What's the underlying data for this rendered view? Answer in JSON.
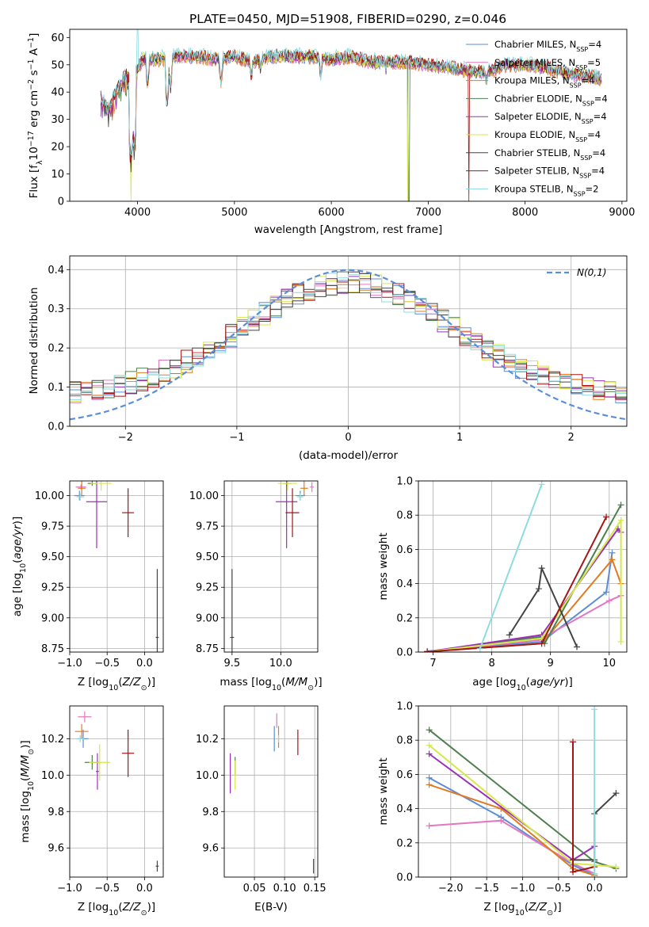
{
  "title": "PLATE=0450, MJD=51908, FIBERID=0290, z=0.046",
  "colors": {
    "Chabrier MILES": "#5b8ed6",
    "Salpeter MILES": "#e377c2",
    "Kroupa MILES": "#e07b24",
    "Chabrier ELODIE": "#4f7f4f",
    "Salpeter ELODIE": "#9b30b8",
    "Kroupa ELODIE": "#d6e84a",
    "Chabrier STELIB": "#444444",
    "Salpeter STELIB": "#a51515",
    "Kroupa STELIB": "#8fdbe0"
  },
  "chart_data": [
    {
      "id": "spectrum",
      "type": "line",
      "xlabel": "wavelength [Angstrom, rest frame]",
      "ylabel": "Flux [f_λ 10^-17 erg cm^-2 s^-1 A^-1]",
      "xlim": [
        3300,
        9050
      ],
      "ylim": [
        0,
        63
      ],
      "xticks": [
        4000,
        5000,
        6000,
        7000,
        8000,
        9000
      ],
      "yticks": [
        0,
        10,
        20,
        30,
        40,
        50,
        60
      ],
      "grid": false,
      "legend_position": "top-right",
      "legend": [
        {
          "name": "Chabrier MILES",
          "label": "Chabrier MILES, N",
          "nssp": "=4"
        },
        {
          "name": "Salpeter MILES",
          "label": "Salpeter MILES, N",
          "nssp": "=5"
        },
        {
          "name": "Kroupa MILES",
          "label": "Kroupa MILES, N",
          "nssp": "=4"
        },
        {
          "name": "Chabrier ELODIE",
          "label": "Chabrier ELODIE, N",
          "nssp": "=4"
        },
        {
          "name": "Salpeter ELODIE",
          "label": "Salpeter ELODIE, N",
          "nssp": "=4"
        },
        {
          "name": "Kroupa ELODIE",
          "label": "Kroupa ELODIE, N",
          "nssp": "=4"
        },
        {
          "name": "Chabrier STELIB",
          "label": "Chabrier STELIB, N",
          "nssp": "=4"
        },
        {
          "name": "Salpeter STELIB",
          "label": "Salpeter STELIB, N",
          "nssp": "=4"
        },
        {
          "name": "Kroupa STELIB",
          "label": "Kroupa STELIB, N",
          "nssp": "=2"
        }
      ],
      "continuum": [
        [
          3620,
          38
        ],
        [
          3700,
          34
        ],
        [
          3800,
          42
        ],
        [
          3880,
          46
        ],
        [
          3960,
          45
        ],
        [
          4050,
          52
        ],
        [
          4200,
          52
        ],
        [
          4400,
          53
        ],
        [
          4600,
          53
        ],
        [
          4800,
          52
        ],
        [
          5000,
          53
        ],
        [
          5200,
          51
        ],
        [
          5400,
          53
        ],
        [
          5600,
          53
        ],
        [
          5800,
          53
        ],
        [
          6000,
          52
        ],
        [
          6200,
          53
        ],
        [
          6400,
          51
        ],
        [
          6600,
          51
        ],
        [
          6800,
          51
        ],
        [
          7000,
          50
        ],
        [
          7200,
          49
        ],
        [
          7400,
          48
        ],
        [
          7600,
          47
        ],
        [
          7800,
          50
        ],
        [
          8000,
          50
        ],
        [
          8200,
          49
        ],
        [
          8400,
          47
        ],
        [
          8600,
          46
        ],
        [
          8790,
          45
        ]
      ],
      "absorption_features": [
        [
          3933,
          15
        ],
        [
          3968,
          20
        ],
        [
          4102,
          42
        ],
        [
          4304,
          35
        ],
        [
          4340,
          41
        ],
        [
          4861,
          43
        ],
        [
          5175,
          45
        ],
        [
          5270,
          48
        ],
        [
          5890,
          45
        ],
        [
          6563,
          48
        ],
        [
          7600,
          43
        ]
      ],
      "dropouts": [
        {
          "series": "Kroupa ELODIE",
          "x": 3930
        },
        {
          "series": "Chabrier ELODIE",
          "x": 6800
        },
        {
          "series": "Kroupa ELODIE",
          "x": 6790
        },
        {
          "series": "Salpeter STELIB",
          "x": 7420
        }
      ]
    },
    {
      "id": "residual_hist",
      "type": "step",
      "xlabel": "(data-model)/error",
      "ylabel": "Normed distribution",
      "xlim": [
        -2.5,
        2.5
      ],
      "ylim": [
        0,
        0.435
      ],
      "xticks": [
        -2,
        -1,
        0,
        1,
        2
      ],
      "yticks": [
        0.0,
        0.1,
        0.2,
        0.3,
        0.4
      ],
      "grid": true,
      "legend_position": "top-right",
      "reference_curve": {
        "label": "N(0,1)",
        "mean": 0,
        "sigma": 1
      },
      "bins": {
        "start": -2.5,
        "width": 0.1,
        "count": 50
      }
    },
    {
      "id": "age_vs_Z",
      "type": "errorbar",
      "xlabel": "Z [log10(Z/Z_sun)]",
      "ylabel": "age  [log10(age/yr)]",
      "xlim": [
        -1.0,
        0.25
      ],
      "ylim": [
        8.72,
        10.12
      ],
      "xticks": [
        -1.0,
        -0.5,
        0.0
      ],
      "yticks": [
        8.75,
        9.0,
        9.25,
        9.5,
        9.75,
        10.0
      ],
      "grid": true,
      "points": [
        {
          "series": "Chabrier MILES",
          "x": -0.87,
          "y": 10.0,
          "xerr": 0.07,
          "yerr": 0.04
        },
        {
          "series": "Salpeter MILES",
          "x": -0.85,
          "y": 10.07,
          "xerr": 0.07,
          "yerr": 0.02
        },
        {
          "series": "Kroupa MILES",
          "x": -0.84,
          "y": 10.06,
          "xerr": 0.05,
          "yerr": 0.06
        },
        {
          "series": "Chabrier ELODIE",
          "x": -0.7,
          "y": 10.1,
          "xerr": 0.06,
          "yerr": 0.02
        },
        {
          "series": "Salpeter ELODIE",
          "x": -0.64,
          "y": 9.95,
          "xerr": 0.14,
          "yerr": 0.38
        },
        {
          "series": "Kroupa ELODIE",
          "x": -0.58,
          "y": 10.1,
          "xerr": 0.14,
          "yerr": 0.06
        },
        {
          "series": "Chabrier STELIB",
          "x": 0.17,
          "y": 8.84,
          "xerr": 0.02,
          "yerr": 0.56
        },
        {
          "series": "Salpeter STELIB",
          "x": -0.22,
          "y": 9.86,
          "xerr": 0.08,
          "yerr": 0.2
        },
        {
          "series": "Kroupa STELIB",
          "x": -0.86,
          "y": 9.99,
          "xerr": 0.05,
          "yerr": 0.03
        }
      ]
    },
    {
      "id": "age_vs_mass",
      "type": "errorbar",
      "xlabel": "mass [log10(M/M_sun)]",
      "ylabel": "",
      "xlim": [
        9.42,
        10.38
      ],
      "ylim": [
        8.72,
        10.12
      ],
      "xticks": [
        9.5,
        10.0
      ],
      "yticks": [
        8.75,
        9.0,
        9.25,
        9.5,
        9.75,
        10.0
      ],
      "grid": true,
      "points": [
        {
          "series": "Chabrier MILES",
          "x": 10.2,
          "y": 10.0,
          "xerr": 0.05,
          "yerr": 0.04
        },
        {
          "series": "Salpeter MILES",
          "x": 10.32,
          "y": 10.07,
          "xerr": 0.02,
          "yerr": 0.04
        },
        {
          "series": "Kroupa MILES",
          "x": 10.24,
          "y": 10.06,
          "xerr": 0.04,
          "yerr": 0.06
        },
        {
          "series": "Chabrier ELODIE",
          "x": 10.07,
          "y": 10.1,
          "xerr": 0.04,
          "yerr": 0.02
        },
        {
          "series": "Salpeter ELODIE",
          "x": 10.06,
          "y": 9.95,
          "xerr": 0.11,
          "yerr": 0.38
        },
        {
          "series": "Kroupa ELODIE",
          "x": 10.07,
          "y": 10.1,
          "xerr": 0.1,
          "yerr": 0.06
        },
        {
          "series": "Chabrier STELIB",
          "x": 9.5,
          "y": 8.84,
          "xerr": 0.02,
          "yerr": 0.56
        },
        {
          "series": "Salpeter STELIB",
          "x": 10.12,
          "y": 9.86,
          "xerr": 0.07,
          "yerr": 0.2
        },
        {
          "series": "Kroupa STELIB",
          "x": 10.2,
          "y": 9.99,
          "xerr": 0.03,
          "yerr": 0.03
        }
      ]
    },
    {
      "id": "weight_vs_age",
      "type": "line",
      "xlabel": "age  [log10(age/yr)]",
      "ylabel": "mass weight",
      "xlim": [
        6.75,
        10.3
      ],
      "ylim": [
        0,
        1.0
      ],
      "xticks": [
        7,
        8,
        9,
        10
      ],
      "yticks": [
        0.0,
        0.2,
        0.4,
        0.6,
        0.8,
        1.0
      ],
      "grid": true,
      "series": [
        {
          "name": "Chabrier MILES",
          "x": [
            6.9,
            8.85,
            9.95,
            10.05
          ],
          "y": [
            0.005,
            0.06,
            0.35,
            0.58
          ]
        },
        {
          "name": "Salpeter MILES",
          "x": [
            6.9,
            8.8,
            10.0,
            10.2
          ],
          "y": [
            0.003,
            0.07,
            0.3,
            0.33
          ]
        },
        {
          "name": "Kroupa MILES",
          "x": [
            6.9,
            8.85,
            10.05,
            10.2
          ],
          "y": [
            0.003,
            0.05,
            0.54,
            0.4
          ]
        },
        {
          "name": "Chabrier ELODIE",
          "x": [
            6.9,
            8.85,
            8.9,
            10.2
          ],
          "y": [
            0.002,
            0.09,
            0.05,
            0.86
          ]
        },
        {
          "name": "Salpeter ELODIE",
          "x": [
            6.9,
            8.85,
            10.15,
            10.2
          ],
          "y": [
            0.002,
            0.1,
            0.72,
            0.7
          ]
        },
        {
          "name": "Kroupa ELODIE",
          "x": [
            6.9,
            8.85,
            10.2,
            10.2
          ],
          "y": [
            0.002,
            0.08,
            0.77,
            0.06
          ]
        },
        {
          "name": "Chabrier STELIB",
          "x": [
            8.3,
            8.8,
            8.85,
            9.45
          ],
          "y": [
            0.1,
            0.37,
            0.49,
            0.03
          ]
        },
        {
          "name": "Salpeter STELIB",
          "x": [
            6.9,
            8.85,
            9.95
          ],
          "y": [
            0.002,
            0.05,
            0.79
          ]
        },
        {
          "name": "Kroupa STELIB",
          "x": [
            7.8,
            8.85
          ],
          "y": [
            0.02,
            0.98
          ]
        }
      ]
    },
    {
      "id": "mass_vs_Z",
      "type": "errorbar",
      "xlabel": "Z [log10(Z/Z_sun)]",
      "ylabel": "mass [log10(M/M_sun)]",
      "xlim": [
        -1.0,
        0.25
      ],
      "ylim": [
        9.44,
        10.38
      ],
      "xticks": [
        -1.0,
        -0.5,
        0.0
      ],
      "yticks": [
        9.6,
        9.8,
        10.0,
        10.2
      ],
      "grid": true,
      "points": [
        {
          "series": "Chabrier MILES",
          "x": -0.82,
          "y": 10.2,
          "xerr": 0.07,
          "yerr": 0.05
        },
        {
          "series": "Salpeter MILES",
          "x": -0.8,
          "y": 10.32,
          "xerr": 0.09,
          "yerr": 0.03
        },
        {
          "series": "Kroupa MILES",
          "x": -0.84,
          "y": 10.24,
          "xerr": 0.09,
          "yerr": 0.04
        },
        {
          "series": "Chabrier ELODIE",
          "x": -0.7,
          "y": 10.07,
          "xerr": 0.1,
          "yerr": 0.04
        },
        {
          "series": "Salpeter ELODIE",
          "x": -0.63,
          "y": 10.02,
          "xerr": 0.02,
          "yerr": 0.1
        },
        {
          "series": "Kroupa ELODIE",
          "x": -0.6,
          "y": 10.07,
          "xerr": 0.14,
          "yerr": 0.1
        },
        {
          "series": "Chabrier STELIB",
          "x": 0.17,
          "y": 9.5,
          "xerr": 0.02,
          "yerr": 0.03
        },
        {
          "series": "Salpeter STELIB",
          "x": -0.22,
          "y": 10.12,
          "xerr": 0.08,
          "yerr": 0.13
        },
        {
          "series": "Kroupa STELIB",
          "x": -0.86,
          "y": 10.2,
          "xerr": 0.05,
          "yerr": 0.02
        }
      ]
    },
    {
      "id": "mass_vs_ebv",
      "type": "errorbar",
      "xlabel": "E(B-V)",
      "ylabel": "",
      "xlim": [
        0.0,
        0.155
      ],
      "ylim": [
        9.44,
        10.38
      ],
      "xticks": [
        0.05,
        0.1,
        0.15
      ],
      "yticks": [
        9.6,
        9.8,
        10.0,
        10.2
      ],
      "grid": true,
      "points": [
        {
          "series": "Chabrier MILES",
          "x": 0.083,
          "y": 10.2,
          "xerr": 0.0,
          "yerr": 0.07
        },
        {
          "series": "Salpeter MILES",
          "x": 0.087,
          "y": 10.3,
          "xerr": 0.0,
          "yerr": 0.04
        },
        {
          "series": "Kroupa MILES",
          "x": 0.09,
          "y": 10.21,
          "xerr": 0.0,
          "yerr": 0.06
        },
        {
          "series": "Chabrier ELODIE",
          "x": 0.018,
          "y": 10.05,
          "xerr": 0.0,
          "yerr": 0.05
        },
        {
          "series": "Salpeter ELODIE",
          "x": 0.01,
          "y": 10.01,
          "xerr": 0.0,
          "yerr": 0.11
        },
        {
          "series": "Kroupa ELODIE",
          "x": 0.018,
          "y": 10.0,
          "xerr": 0.0,
          "yerr": 0.08
        },
        {
          "series": "Chabrier STELIB",
          "x": 0.148,
          "y": 9.5,
          "xerr": 0.0,
          "yerr": 0.04
        },
        {
          "series": "Salpeter STELIB",
          "x": 0.122,
          "y": 10.18,
          "xerr": 0.0,
          "yerr": 0.07
        },
        {
          "series": "Kroupa STELIB",
          "x": 0.09,
          "y": 10.2,
          "xerr": 0.0,
          "yerr": 0.02
        }
      ]
    },
    {
      "id": "weight_vs_Z",
      "type": "line",
      "xlabel": "Z [log10(Z/Z_sun)]",
      "ylabel": "mass weight",
      "xlim": [
        -2.45,
        0.45
      ],
      "ylim": [
        0,
        1.0
      ],
      "xticks": [
        -2.0,
        -1.5,
        -1.0,
        -0.5,
        0.0
      ],
      "yticks": [
        0.0,
        0.2,
        0.4,
        0.6,
        0.8,
        1.0
      ],
      "grid": true,
      "series": [
        {
          "name": "Chabrier MILES",
          "x": [
            -2.3,
            -1.3,
            -0.3,
            0.0
          ],
          "y": [
            0.58,
            0.35,
            0.07,
            0.01
          ]
        },
        {
          "name": "Salpeter MILES",
          "x": [
            -2.3,
            -1.3,
            -0.3,
            0.0
          ],
          "y": [
            0.3,
            0.33,
            0.08,
            0.02
          ]
        },
        {
          "name": "Kroupa MILES",
          "x": [
            -2.3,
            -1.3,
            -0.3,
            0.0
          ],
          "y": [
            0.54,
            0.4,
            0.05,
            0.01
          ]
        },
        {
          "name": "Chabrier ELODIE",
          "x": [
            -2.3,
            0.0,
            0.3
          ],
          "y": [
            0.86,
            0.09,
            0.05
          ]
        },
        {
          "name": "Salpeter ELODIE",
          "x": [
            -2.3,
            -0.3,
            0.0
          ],
          "y": [
            0.72,
            0.1,
            0.18
          ]
        },
        {
          "name": "Kroupa ELODIE",
          "x": [
            -2.3,
            -0.3,
            0.3
          ],
          "y": [
            0.77,
            0.08,
            0.06
          ]
        },
        {
          "name": "Chabrier STELIB",
          "x": [
            -0.3,
            0.0,
            0.0,
            0.3
          ],
          "y": [
            0.1,
            0.1,
            0.37,
            0.49
          ]
        },
        {
          "name": "Salpeter STELIB",
          "x": [
            -0.3,
            -0.3,
            0.0
          ],
          "y": [
            0.79,
            0.03,
            0.06
          ]
        },
        {
          "name": "Kroupa STELIB",
          "x": [
            0.0,
            0.0
          ],
          "y": [
            0.98,
            0.02
          ]
        }
      ]
    }
  ]
}
